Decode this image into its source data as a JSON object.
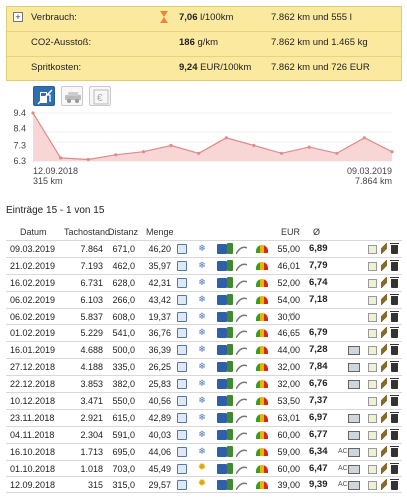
{
  "summary": {
    "rows": [
      {
        "label": "Verbrauch:",
        "value": "7,06",
        "unit": " l/100km",
        "extra": "7.862 km und 555 l",
        "has_expander": true,
        "expander": "+",
        "has_hourglass": true
      },
      {
        "label": "CO2-Ausstoß:",
        "value": "186",
        "unit": " g/km",
        "extra": "7.862 km und 1.465 kg",
        "has_expander": false,
        "has_hourglass": false
      },
      {
        "label": "Spritkosten:",
        "value": "9,24",
        "unit": " EUR/100km",
        "extra": "7.862 km und 726 EUR",
        "has_expander": false,
        "has_hourglass": false
      }
    ]
  },
  "tabs": [
    {
      "icon": "fuel-pump-icon",
      "active": true
    },
    {
      "icon": "vehicle-icon",
      "active": false
    },
    {
      "icon": "euro-icon",
      "active": false
    }
  ],
  "chart_data": {
    "type": "area",
    "values": [
      9.4,
      6.5,
      6.4,
      6.7,
      6.9,
      7.3,
      6.8,
      7.8,
      7.3,
      6.8,
      7.2,
      6.8,
      7.8,
      6.9
    ],
    "ylim": [
      6.3,
      9.4
    ],
    "yticks": [
      "9.4",
      "8.4",
      "7.3",
      "6.3"
    ],
    "start_label": "12.09.2018",
    "start_sub": "315 km",
    "end_label": "09.03.2019",
    "end_sub": "7.864 km",
    "line_color": "#e08a8a",
    "fill_color": "#f8d6d6"
  },
  "entries_title": "Einträge 15 - 1 von 15",
  "table": {
    "headers": {
      "date": "Datum",
      "odo": "Tachostand",
      "dist": "Distanz",
      "qty": "Menge",
      "eur": "EUR",
      "cons": "Ø"
    },
    "rows": [
      {
        "date": "09.03.2019",
        "odo": "7.864",
        "dist": "671,0",
        "qty": "46,20",
        "weather": "snow",
        "eur": "55,00",
        "cons": "6,89",
        "ac": false,
        "monitor": false,
        "note": true
      },
      {
        "date": "21.02.2019",
        "odo": "7.193",
        "dist": "462,0",
        "qty": "35,97",
        "weather": "snow",
        "eur": "46,01",
        "cons": "7,79",
        "ac": false,
        "monitor": false,
        "note": true
      },
      {
        "date": "16.02.2019",
        "odo": "6.731",
        "dist": "628,0",
        "qty": "42,31",
        "weather": "snow",
        "eur": "52,00",
        "cons": "6,74",
        "ac": false,
        "monitor": false,
        "note": true
      },
      {
        "date": "06.02.2019",
        "odo": "6.103",
        "dist": "266,0",
        "qty": "43,42",
        "weather": "snow",
        "eur": "54,00",
        "cons": "7,18",
        "ac": false,
        "monitor": false,
        "note": true
      },
      {
        "date": "06.02.2019",
        "odo": "5.837",
        "dist": "608,0",
        "qty": "19,37",
        "weather": "snow",
        "eur": "30,00",
        "cons": "",
        "ac": false,
        "monitor": false,
        "note": true,
        "returned": true
      },
      {
        "date": "01.02.2019",
        "odo": "5.229",
        "dist": "541,0",
        "qty": "36,76",
        "weather": "snow",
        "eur": "46,65",
        "cons": "6,79",
        "ac": false,
        "monitor": false,
        "note": true
      },
      {
        "date": "16.01.2019",
        "odo": "4.688",
        "dist": "500,0",
        "qty": "36,39",
        "weather": "snow",
        "eur": "44,00",
        "cons": "7,28",
        "ac": false,
        "monitor": true,
        "note": true
      },
      {
        "date": "27.12.2018",
        "odo": "4.188",
        "dist": "335,0",
        "qty": "26,25",
        "weather": "snow",
        "eur": "32,00",
        "cons": "7,84",
        "ac": false,
        "monitor": true,
        "note": true
      },
      {
        "date": "22.12.2018",
        "odo": "3.853",
        "dist": "382,0",
        "qty": "25,83",
        "weather": "snow",
        "eur": "32,00",
        "cons": "6,76",
        "ac": false,
        "monitor": true,
        "note": true
      },
      {
        "date": "10.12.2018",
        "odo": "3.471",
        "dist": "550,0",
        "qty": "40,56",
        "weather": "snow",
        "eur": "53,50",
        "cons": "7,37",
        "ac": false,
        "monitor": false,
        "note": true
      },
      {
        "date": "23.11.2018",
        "odo": "2.921",
        "dist": "615,0",
        "qty": "42,89",
        "weather": "snow",
        "eur": "63,01",
        "cons": "6,97",
        "ac": false,
        "monitor": true,
        "note": true
      },
      {
        "date": "04.11.2018",
        "odo": "2.304",
        "dist": "591,0",
        "qty": "40,03",
        "weather": "snow",
        "eur": "60,00",
        "cons": "6,77",
        "ac": false,
        "monitor": true,
        "note": true
      },
      {
        "date": "16.10.2018",
        "odo": "1.713",
        "dist": "695,0",
        "qty": "44,06",
        "weather": "snow",
        "eur": "59,00",
        "cons": "6,34",
        "ac": true,
        "monitor": true,
        "note": true
      },
      {
        "date": "01.10.2018",
        "odo": "1.018",
        "dist": "703,0",
        "qty": "45,49",
        "weather": "sun",
        "eur": "60,00",
        "cons": "6,47",
        "ac": true,
        "monitor": true,
        "note": true
      },
      {
        "date": "12.09.2018",
        "odo": "315",
        "dist": "315,0",
        "qty": "29,57",
        "weather": "sun",
        "eur": "39,00",
        "cons": "9,39",
        "ac": true,
        "monitor": true,
        "note": true
      }
    ],
    "ac_label": "AC",
    "return_glyph": "↵"
  }
}
